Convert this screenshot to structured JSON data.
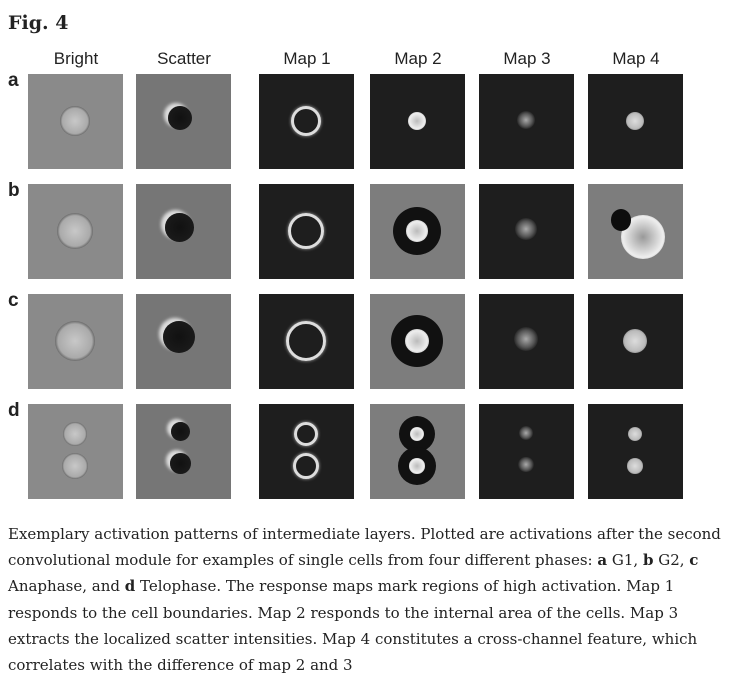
{
  "figure": {
    "title": "Fig. 4",
    "columns": [
      "Bright",
      "Scatter",
      "Map 1",
      "Map 2",
      "Map 3",
      "Map 4"
    ],
    "rows": [
      {
        "label": "a",
        "phase": "G1"
      },
      {
        "label": "b",
        "phase": "G2"
      },
      {
        "label": "c",
        "phase": "Anaphase"
      },
      {
        "label": "d",
        "phase": "Telophase"
      }
    ]
  },
  "caption": {
    "intro": "Exemplary activation patterns of intermediate layers. Plotted are activations after the second convolutional module for examples of single cells from four different phases: ",
    "a": "a",
    "a_text": " G1, ",
    "b": "b",
    "b_text": " G2, ",
    "c": "c",
    "c_text": " Anaphase, and ",
    "d": "d",
    "d_text": " Telophase. ",
    "rest": "The response maps mark regions of high activation. Map 1 responds to the cell boundaries. Map 2 responds to the internal area of the cells. Map 3 extracts the localized scatter intensities. Map 4 constitutes a cross-channel feature, which correlates with the difference of map 2 and 3"
  }
}
